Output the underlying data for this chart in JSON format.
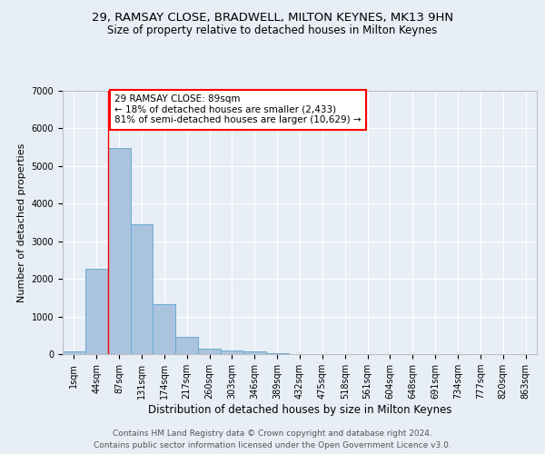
{
  "title": "29, RAMSAY CLOSE, BRADWELL, MILTON KEYNES, MK13 9HN",
  "subtitle": "Size of property relative to detached houses in Milton Keynes",
  "xlabel": "Distribution of detached houses by size in Milton Keynes",
  "ylabel": "Number of detached properties",
  "footer_line1": "Contains HM Land Registry data © Crown copyright and database right 2024.",
  "footer_line2": "Contains public sector information licensed under the Open Government Licence v3.0.",
  "bar_labels": [
    "1sqm",
    "44sqm",
    "87sqm",
    "131sqm",
    "174sqm",
    "217sqm",
    "260sqm",
    "303sqm",
    "346sqm",
    "389sqm",
    "432sqm",
    "475sqm",
    "518sqm",
    "561sqm",
    "604sqm",
    "648sqm",
    "691sqm",
    "734sqm",
    "777sqm",
    "820sqm",
    "863sqm"
  ],
  "bar_values": [
    75,
    2280,
    5480,
    3450,
    1320,
    470,
    155,
    90,
    65,
    35,
    0,
    0,
    0,
    0,
    0,
    0,
    0,
    0,
    0,
    0,
    0
  ],
  "bar_color": "#aac4df",
  "bar_edge_color": "#6aaad4",
  "annotation_text": "29 RAMSAY CLOSE: 89sqm\n← 18% of detached houses are smaller (2,433)\n81% of semi-detached houses are larger (10,629) →",
  "annotation_box_color": "white",
  "annotation_edge_color": "red",
  "property_line_x": 1.5,
  "property_line_color": "red",
  "ylim": [
    0,
    7000
  ],
  "yticks": [
    0,
    1000,
    2000,
    3000,
    4000,
    5000,
    6000,
    7000
  ],
  "background_color": "#e8eef5",
  "plot_bg_color": "#e8eef5",
  "grid_color": "white",
  "title_fontsize": 9.5,
  "subtitle_fontsize": 8.5,
  "xlabel_fontsize": 8.5,
  "ylabel_fontsize": 8,
  "tick_fontsize": 7,
  "annotation_fontsize": 7.5,
  "footer_fontsize": 6.5
}
